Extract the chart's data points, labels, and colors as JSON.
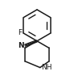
{
  "bg_color": "#ffffff",
  "line_color": "#1a1a1a",
  "line_width": 1.1,
  "figsize": [
    0.87,
    0.99
  ],
  "dpi": 100,
  "F_label": "F",
  "NH_label": "NH",
  "CN_label": "N",
  "font_size": 6.5
}
